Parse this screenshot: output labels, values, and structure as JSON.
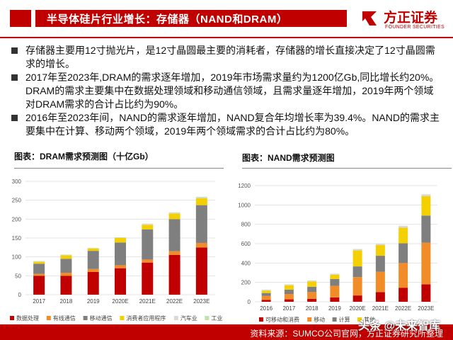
{
  "header": {
    "title": "半导体硅片行业增长：存储器（NAND和DRAM）"
  },
  "logo": {
    "name": "方正证券",
    "sub": "FOUNDER SECURITIES"
  },
  "bullets": [
    "存储器主要用12寸抛光片，是12寸晶圆最主要的消耗者，存储器的增长直接决定了12寸晶圆需求的增长。",
    "2017年至2023年,DRAM的需求逐年增加，2019年市场需求量约为1200亿Gb,同比增长约20%。DRAM的需求主要集中在数据处理领域和移动通信领域，且需求量逐年增加，2019年两个领域对DRAM需求的合计占比约为90%。",
    "2016年至2023年间，NAND的需求逐年增加，NAND复合年均增长率为39.4%。NAND的需求主要集中在计算、移动两个领域，2019年两个领域需求的合计占比约为80%。"
  ],
  "footer": {
    "source": "资料来源：SUMCO公司官网，方正证券研究所整理"
  },
  "watermark": "头条 @未来智库",
  "chart_data": [
    {
      "type": "bar",
      "stacked": true,
      "title": "图表：DRAM需求预测图（十亿Gb）",
      "categories": [
        "2017",
        "2018",
        "2019",
        "2020E",
        "2021E",
        "2022E",
        "2023E"
      ],
      "ylim": [
        0,
        300
      ],
      "yticks": [
        0,
        50,
        100,
        150,
        200,
        250,
        300
      ],
      "grid": true,
      "legend_position": "bottom",
      "series": [
        {
          "name": "数据处理",
          "color": "#c00000",
          "values": [
            50,
            50,
            60,
            70,
            85,
            105,
            125
          ]
        },
        {
          "name": "有线通信",
          "color": "#f28c28",
          "values": [
            5,
            8,
            8,
            8,
            8,
            10,
            12
          ]
        },
        {
          "name": "移动通信",
          "color": "#7f7f7f",
          "values": [
            27,
            37,
            48,
            60,
            80,
            85,
            100
          ]
        },
        {
          "name": "消费者应用程序",
          "color": "#f5d000",
          "values": [
            5,
            9,
            6,
            12,
            12,
            15,
            18
          ]
        },
        {
          "name": "汽车业",
          "color": "#d9d9d9",
          "values": [
            1,
            1,
            1,
            1,
            2,
            2,
            2
          ]
        },
        {
          "name": "工业",
          "color": "#bfe3a8",
          "values": [
            1,
            1,
            1,
            1,
            1,
            1,
            2
          ]
        }
      ]
    },
    {
      "type": "bar",
      "stacked": true,
      "title": "图表：NAND需求预测图",
      "categories": [
        "2016",
        "2017",
        "2018",
        "2019",
        "2020E",
        "2021E",
        "2022E",
        "2023E"
      ],
      "ylim": [
        0,
        1200
      ],
      "yticks": [
        0,
        200,
        400,
        600,
        800,
        1000,
        1200
      ],
      "grid": true,
      "legend_position": "bottom",
      "series": [
        {
          "name": "可移动和消费",
          "color": "#c00000",
          "values": [
            20,
            25,
            30,
            45,
            65,
            100,
            145,
            180
          ]
        },
        {
          "name": "移动",
          "color": "#f28c28",
          "values": [
            40,
            55,
            70,
            120,
            190,
            210,
            255,
            430
          ]
        },
        {
          "name": "计算",
          "color": "#7f7f7f",
          "values": [
            30,
            45,
            55,
            70,
            110,
            165,
            205,
            280
          ]
        },
        {
          "name": "其他",
          "color": "#f5d000",
          "values": [
            25,
            45,
            55,
            45,
            165,
            110,
            160,
            200
          ]
        },
        {
          "name": "",
          "color": "#d9d9d9",
          "values": [
            10,
            10,
            10,
            10,
            15,
            15,
            20,
            20
          ]
        }
      ]
    }
  ]
}
